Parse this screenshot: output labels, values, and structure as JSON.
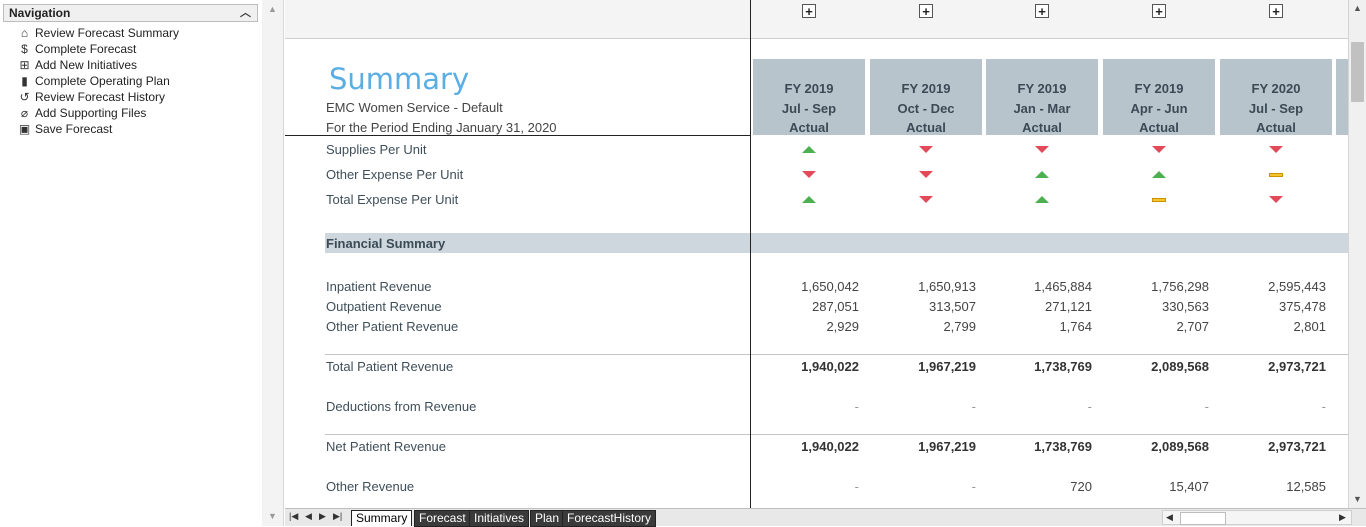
{
  "nav": {
    "title": "Navigation",
    "items": [
      {
        "label": "Review Forecast Summary",
        "icon": "home-icon",
        "glyph": "⌂"
      },
      {
        "label": "Complete Forecast",
        "icon": "dollar-icon",
        "glyph": "$"
      },
      {
        "label": "Add New Initiatives",
        "icon": "plus-box-icon",
        "glyph": "⊞"
      },
      {
        "label": "Complete Operating Plan",
        "icon": "book-icon",
        "glyph": "▮"
      },
      {
        "label": "Review Forecast History",
        "icon": "history-icon",
        "glyph": "↺"
      },
      {
        "label": "Add Supporting Files",
        "icon": "paperclip-icon",
        "glyph": "⌀"
      },
      {
        "label": "Save Forecast",
        "icon": "save-icon",
        "glyph": "▣"
      }
    ]
  },
  "summary": {
    "title": "Summary",
    "entity": "EMC Women Service - Default",
    "period": "For the Period Ending January 31, 2020"
  },
  "columns": [
    {
      "fy": "FY 2019",
      "range": "Jul - Sep",
      "type": "Actual"
    },
    {
      "fy": "FY 2019",
      "range": "Oct - Dec",
      "type": "Actual"
    },
    {
      "fy": "FY 2019",
      "range": "Jan - Mar",
      "type": "Actual"
    },
    {
      "fy": "FY 2019",
      "range": "Apr - Jun",
      "type": "Actual"
    },
    {
      "fy": "FY 2020",
      "range": "Jul - Sep",
      "type": "Actual"
    }
  ],
  "indicators": [
    {
      "label": "Supplies Per Unit",
      "trend": [
        "up",
        "down",
        "down",
        "down",
        "down"
      ]
    },
    {
      "label": "Other Expense Per Unit",
      "trend": [
        "down",
        "down",
        "up",
        "up",
        "flat"
      ]
    },
    {
      "label": "Total Expense Per Unit",
      "trend": [
        "up",
        "down",
        "up",
        "flat",
        "down"
      ]
    }
  ],
  "section": "Financial Summary",
  "rows": [
    {
      "label": "Inpatient Revenue",
      "values": [
        "1,650,042",
        "1,650,913",
        "1,465,884",
        "1,756,298",
        "2,595,443"
      ],
      "bold": false
    },
    {
      "label": "Outpatient Revenue",
      "values": [
        "287,051",
        "313,507",
        "271,121",
        "330,563",
        "375,478"
      ],
      "bold": false
    },
    {
      "label": "Other Patient Revenue",
      "values": [
        "2,929",
        "2,799",
        "1,764",
        "2,707",
        "2,801"
      ],
      "bold": false
    },
    {
      "label": "Total Patient Revenue",
      "values": [
        "1,940,022",
        "1,967,219",
        "1,738,769",
        "2,089,568",
        "2,973,721"
      ],
      "bold": true
    },
    {
      "label": "Deductions from Revenue",
      "values": [
        "-",
        "-",
        "-",
        "-",
        "-"
      ],
      "bold": false
    },
    {
      "label": "Net Patient Revenue",
      "values": [
        "1,940,022",
        "1,967,219",
        "1,738,769",
        "2,089,568",
        "2,973,721"
      ],
      "bold": true
    },
    {
      "label": "Other Revenue",
      "values": [
        "-",
        "-",
        "720",
        "15,407",
        "12,585"
      ],
      "bold": false
    }
  ],
  "tabs": [
    "Summary",
    "Forecast",
    "Initiatives",
    "Plan",
    "ForecastHistory"
  ],
  "active_tab": "Summary",
  "colors": {
    "title": "#5aaee3",
    "header_bg": "#b7c4cc",
    "up": "#4caf50",
    "down": "#e24a5a",
    "flat": "#f6c232"
  }
}
